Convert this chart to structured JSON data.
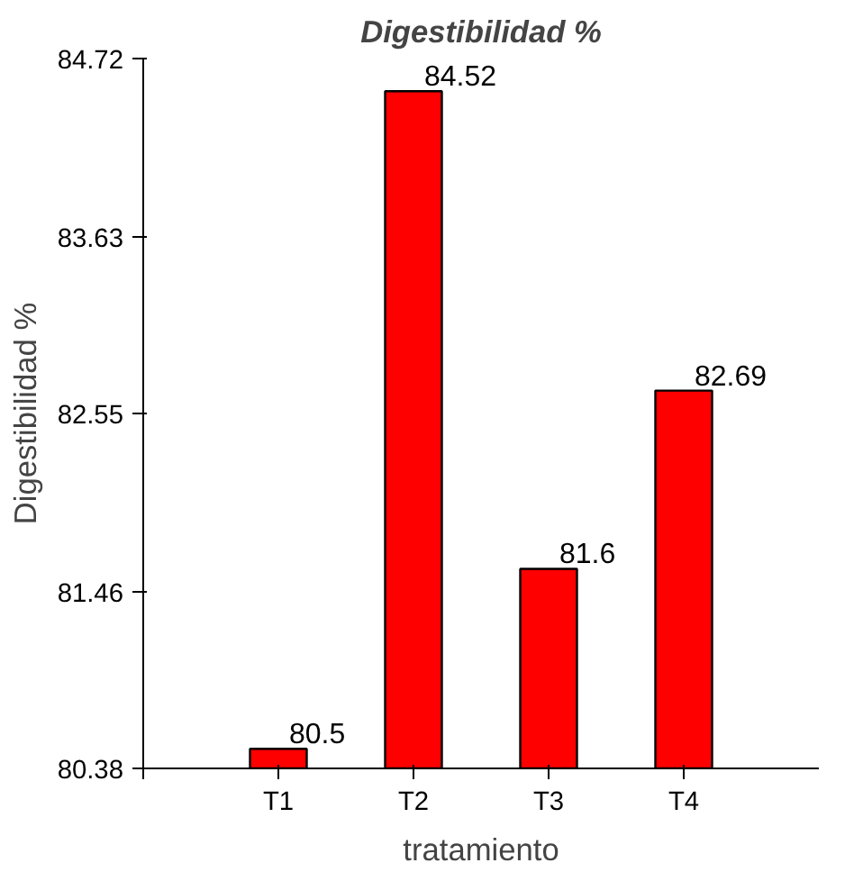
{
  "chart_data": {
    "type": "bar",
    "title": "Digestibilidad %",
    "xlabel": "tratamiento",
    "ylabel": "Digestibilidad %",
    "categories": [
      "T1",
      "T2",
      "T3",
      "T4"
    ],
    "values": [
      80.5,
      84.52,
      81.6,
      82.69
    ],
    "color": "#ff0000",
    "ylim": [
      80.38,
      84.72
    ],
    "yticks": [
      80.38,
      81.46,
      82.55,
      83.63,
      84.72
    ],
    "data_labels": true,
    "grid": false
  }
}
